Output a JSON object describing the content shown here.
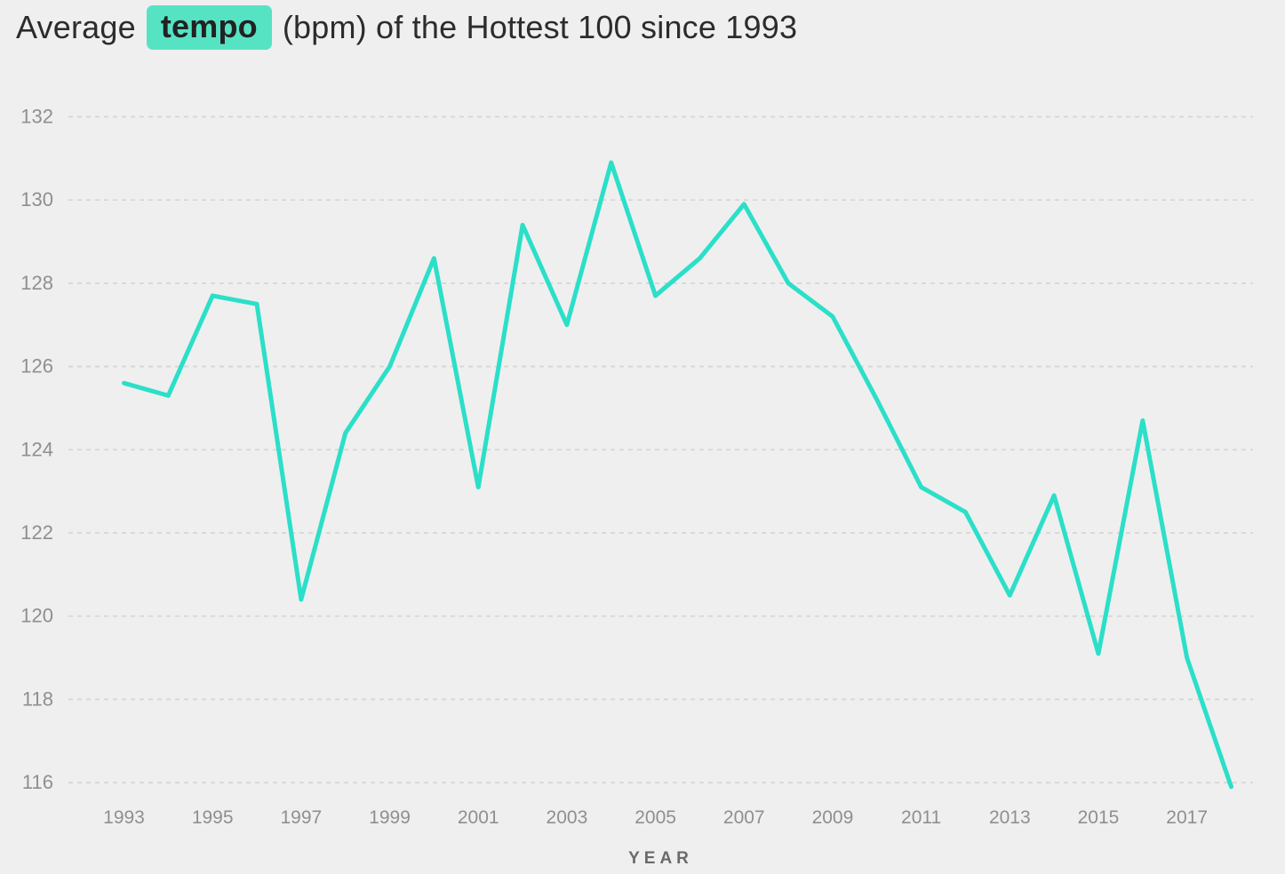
{
  "page": {
    "background": "#efefef"
  },
  "title": {
    "prefix": "Average",
    "highlight": "tempo",
    "suffix": "(bpm) of the Hottest 100 since 1993",
    "highlight_bg": "#56e3c4"
  },
  "chart_data": {
    "type": "line",
    "title": "Average tempo (bpm) of the Hottest 100 since 1993",
    "xlabel": "YEAR",
    "ylabel": "",
    "x": [
      1993,
      1994,
      1995,
      1996,
      1997,
      1998,
      1999,
      2000,
      2001,
      2002,
      2003,
      2004,
      2005,
      2006,
      2007,
      2008,
      2009,
      2010,
      2011,
      2012,
      2013,
      2014,
      2015,
      2016,
      2017,
      2018
    ],
    "series": [
      {
        "name": "Average tempo (bpm)",
        "values": [
          125.6,
          125.3,
          127.7,
          127.5,
          120.4,
          124.4,
          126.0,
          128.6,
          123.1,
          129.4,
          127.0,
          130.9,
          127.7,
          128.6,
          129.9,
          128.0,
          127.2,
          125.2,
          123.1,
          122.5,
          120.5,
          122.9,
          119.1,
          124.7,
          119.0,
          115.9
        ]
      }
    ],
    "ylim": [
      116,
      132
    ],
    "yticks": [
      116,
      118,
      120,
      122,
      124,
      126,
      128,
      130,
      132
    ],
    "xticks": [
      1993,
      1995,
      1997,
      1999,
      2001,
      2003,
      2005,
      2007,
      2009,
      2011,
      2013,
      2015,
      2017
    ],
    "grid": "horizontal-dashed",
    "legend": "none",
    "line_color": "#2bdfc8",
    "grid_color": "#d5d5d5",
    "tick_color": "#8f8f8f",
    "xlabel_color": "#6a6a6a"
  }
}
